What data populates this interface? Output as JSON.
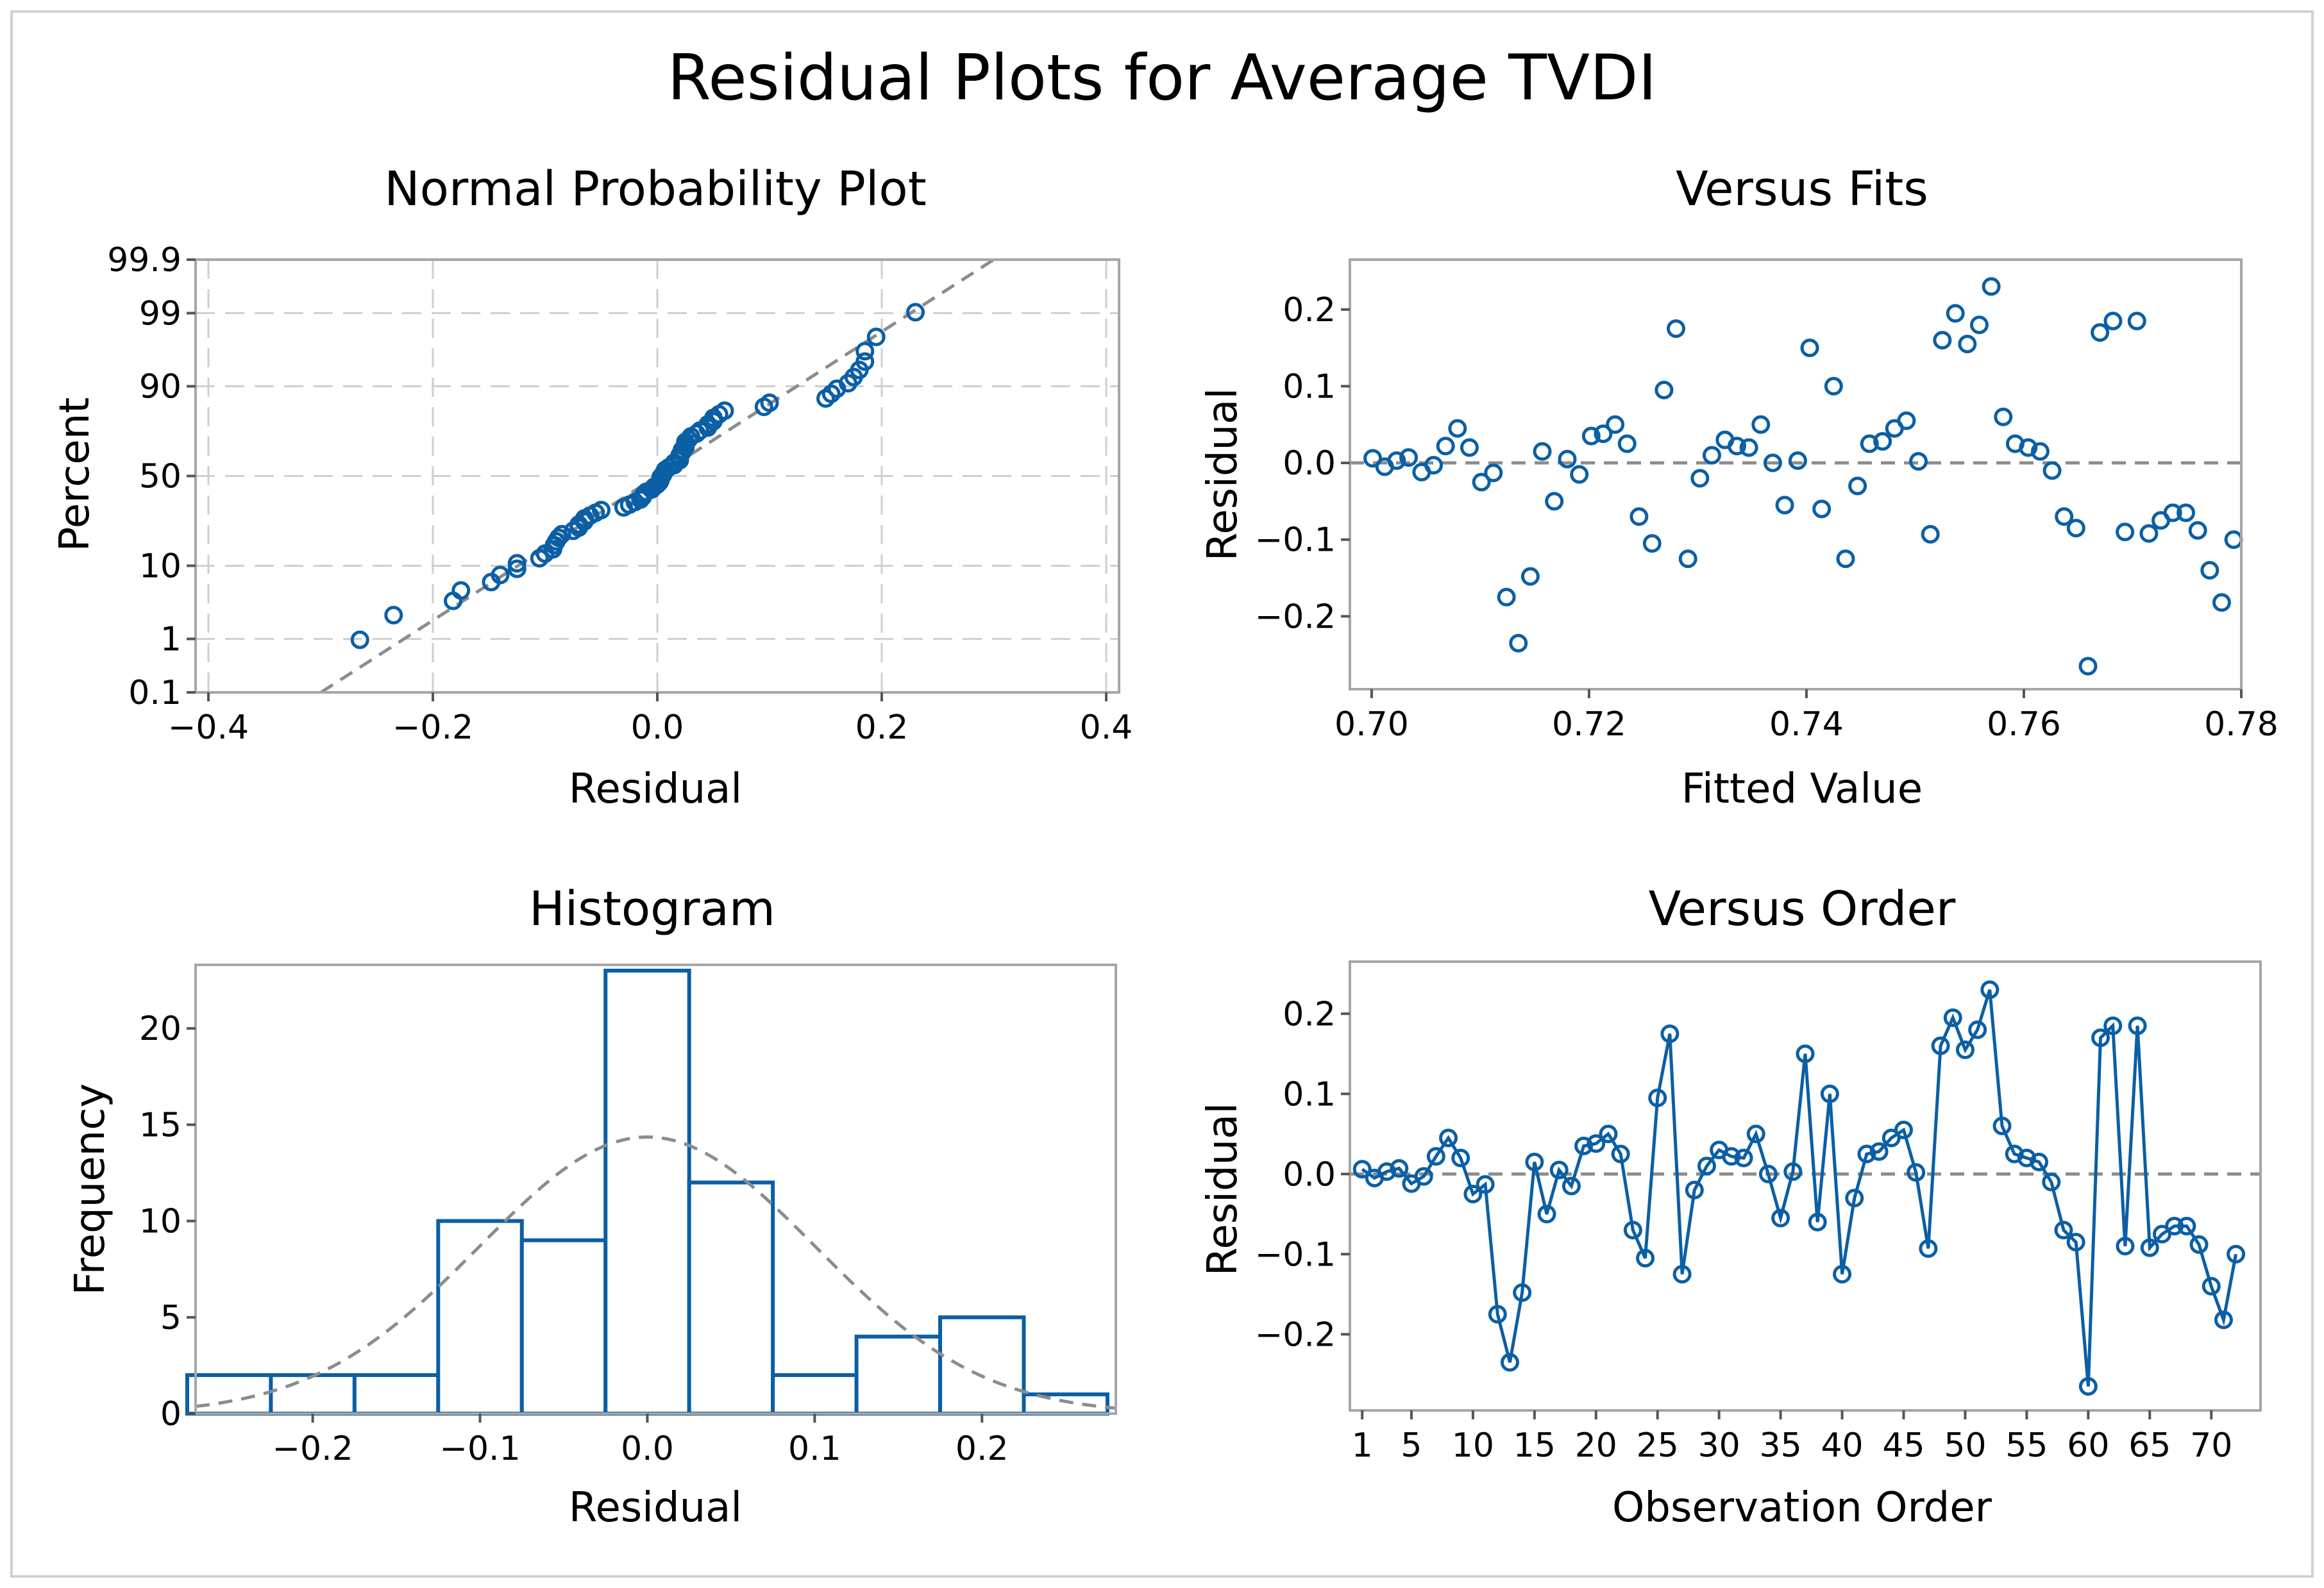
{
  "figure": {
    "title": "Residual Plots for Average TVDI",
    "accent_color": "#0b5fa5",
    "reference_color": "#8c8c8c"
  },
  "chart_data": [
    {
      "type": "scatter",
      "id": "npp",
      "title": "Normal Probability Plot",
      "xlabel": "Residual",
      "ylabel": "Percent",
      "xlim": [
        -0.4,
        0.4
      ],
      "ylim_percent": [
        0.1,
        99.9
      ],
      "x_ticks": [
        -0.4,
        -0.2,
        0.0,
        0.2,
        0.4
      ],
      "x_tick_labels": [
        "−0.4",
        "−0.2",
        "0.0",
        "0.2",
        "0.4"
      ],
      "y_ticks": [
        0.1,
        1,
        10,
        50,
        90,
        99,
        99.9
      ],
      "y_tick_labels": [
        "0.1",
        "1",
        "10",
        "50",
        "90",
        "99",
        "99.9"
      ],
      "grid": true,
      "reference_line": {
        "mean": 0.0,
        "sd": 0.097
      },
      "residuals": [
        0.006,
        -0.005,
        0.003,
        0.007,
        -0.012,
        -0.003,
        0.022,
        0.045,
        0.02,
        -0.025,
        -0.013,
        -0.175,
        -0.235,
        -0.148,
        0.015,
        -0.05,
        0.005,
        -0.015,
        0.035,
        0.038,
        0.05,
        0.025,
        -0.07,
        -0.105,
        0.095,
        0.175,
        -0.125,
        -0.02,
        0.01,
        0.03,
        0.022,
        0.02,
        0.05,
        0.0,
        -0.055,
        0.003,
        0.15,
        -0.06,
        0.1,
        -0.125,
        -0.03,
        0.025,
        0.028,
        0.045,
        0.055,
        0.002,
        -0.093,
        0.16,
        0.195,
        0.155,
        0.18,
        0.23,
        0.06,
        0.025,
        0.02,
        0.015,
        -0.01,
        -0.07,
        -0.085,
        -0.265,
        0.17,
        0.185,
        -0.09,
        0.185,
        -0.092,
        -0.075,
        -0.065,
        -0.065,
        -0.088,
        -0.14,
        -0.182,
        -0.1
      ]
    },
    {
      "type": "scatter",
      "id": "fits",
      "title": "Versus Fits",
      "xlabel": "Fitted Value",
      "ylabel": "Residual",
      "xlim": [
        0.698,
        0.78
      ],
      "ylim": [
        -0.295,
        0.265
      ],
      "x_ticks": [
        0.7,
        0.72,
        0.74,
        0.76,
        0.78
      ],
      "x_tick_labels": [
        "0.70",
        "0.72",
        "0.74",
        "0.76",
        "0.78"
      ],
      "y_ticks": [
        -0.2,
        -0.1,
        0.0,
        0.1,
        0.2
      ],
      "y_tick_labels": [
        "−0.2",
        "−0.1",
        "0.0",
        "0.1",
        "0.2"
      ],
      "grid": false,
      "reference_y": 0.0,
      "points": [
        [
          0.7001,
          0.006
        ],
        [
          0.7012,
          -0.005
        ],
        [
          0.7023,
          0.003
        ],
        [
          0.7034,
          0.007
        ],
        [
          0.7046,
          -0.012
        ],
        [
          0.7057,
          -0.003
        ],
        [
          0.7068,
          0.022
        ],
        [
          0.7079,
          0.045
        ],
        [
          0.709,
          0.02
        ],
        [
          0.7101,
          -0.025
        ],
        [
          0.7112,
          -0.013
        ],
        [
          0.7124,
          -0.175
        ],
        [
          0.7135,
          -0.235
        ],
        [
          0.7146,
          -0.148
        ],
        [
          0.7157,
          0.015
        ],
        [
          0.7168,
          -0.05
        ],
        [
          0.718,
          0.005
        ],
        [
          0.7191,
          -0.015
        ],
        [
          0.7202,
          0.035
        ],
        [
          0.7213,
          0.038
        ],
        [
          0.7224,
          0.05
        ],
        [
          0.7235,
          0.025
        ],
        [
          0.7246,
          -0.07
        ],
        [
          0.7258,
          -0.105
        ],
        [
          0.7269,
          0.095
        ],
        [
          0.728,
          0.175
        ],
        [
          0.7291,
          -0.125
        ],
        [
          0.7302,
          -0.02
        ],
        [
          0.7313,
          0.01
        ],
        [
          0.7325,
          0.03
        ],
        [
          0.7336,
          0.022
        ],
        [
          0.7347,
          0.02
        ],
        [
          0.7358,
          0.05
        ],
        [
          0.7369,
          0.0
        ],
        [
          0.738,
          -0.055
        ],
        [
          0.7392,
          0.003
        ],
        [
          0.7403,
          0.15
        ],
        [
          0.7414,
          -0.06
        ],
        [
          0.7425,
          0.1
        ],
        [
          0.7436,
          -0.125
        ],
        [
          0.7447,
          -0.03
        ],
        [
          0.7458,
          0.025
        ],
        [
          0.747,
          0.028
        ],
        [
          0.7481,
          0.045
        ],
        [
          0.7492,
          0.055
        ],
        [
          0.7503,
          0.002
        ],
        [
          0.7514,
          -0.093
        ],
        [
          0.7525,
          0.16
        ],
        [
          0.7537,
          0.195
        ],
        [
          0.7548,
          0.155
        ],
        [
          0.7559,
          0.18
        ],
        [
          0.757,
          0.23
        ],
        [
          0.7581,
          0.06
        ],
        [
          0.7592,
          0.025
        ],
        [
          0.7604,
          0.02
        ],
        [
          0.7615,
          0.015
        ],
        [
          0.7626,
          -0.01
        ],
        [
          0.7637,
          -0.07
        ],
        [
          0.7648,
          -0.085
        ],
        [
          0.7659,
          -0.265
        ],
        [
          0.767,
          0.17
        ],
        [
          0.7682,
          0.185
        ],
        [
          0.7693,
          -0.09
        ],
        [
          0.7704,
          0.185
        ],
        [
          0.7715,
          -0.092
        ],
        [
          0.7726,
          -0.075
        ],
        [
          0.7737,
          -0.065
        ],
        [
          0.7749,
          -0.065
        ],
        [
          0.776,
          -0.088
        ],
        [
          0.7771,
          -0.14
        ],
        [
          0.7782,
          -0.182
        ],
        [
          0.7793,
          -0.1
        ]
      ]
    },
    {
      "type": "bar",
      "id": "hist",
      "title": "Histogram",
      "xlabel": "Residual",
      "ylabel": "Frequency",
      "xlim": [
        -0.27,
        0.28
      ],
      "ylim": [
        0,
        23.3
      ],
      "bin_width": 0.05,
      "bin_centers": [
        -0.25,
        -0.2,
        -0.15,
        -0.1,
        -0.05,
        0.0,
        0.05,
        0.1,
        0.15,
        0.2,
        0.25
      ],
      "values": [
        2,
        2,
        2,
        10,
        9,
        23,
        12,
        2,
        4,
        5,
        1
      ],
      "x_ticks": [
        -0.2,
        -0.1,
        0.0,
        0.1,
        0.2
      ],
      "x_tick_labels": [
        "−0.2",
        "−0.1",
        "0.0",
        "0.1",
        "0.2"
      ],
      "y_ticks": [
        0,
        5,
        10,
        15,
        20
      ],
      "y_tick_labels": [
        "0",
        "5",
        "10",
        "15",
        "20"
      ],
      "normal_curve": {
        "mean": 0.0,
        "sd": 0.1,
        "n": 72
      }
    },
    {
      "type": "line",
      "id": "order",
      "title": "Versus Order",
      "xlabel": "Observation Order",
      "ylabel": "Residual",
      "xlim": [
        0,
        74
      ],
      "ylim": [
        -0.295,
        0.265
      ],
      "x_ticks": [
        1,
        5,
        10,
        15,
        20,
        25,
        30,
        35,
        40,
        45,
        50,
        55,
        60,
        65,
        70
      ],
      "x_tick_labels": [
        "1",
        "5",
        "10",
        "15",
        "20",
        "25",
        "30",
        "35",
        "40",
        "45",
        "50",
        "55",
        "60",
        "65",
        "70"
      ],
      "y_ticks": [
        -0.2,
        -0.1,
        0.0,
        0.1,
        0.2
      ],
      "y_tick_labels": [
        "−0.2",
        "−0.1",
        "0.0",
        "0.1",
        "0.2"
      ],
      "reference_y": 0.0,
      "values": [
        0.006,
        -0.005,
        0.003,
        0.007,
        -0.012,
        -0.003,
        0.022,
        0.045,
        0.02,
        -0.025,
        -0.013,
        -0.175,
        -0.235,
        -0.148,
        0.015,
        -0.05,
        0.005,
        -0.015,
        0.035,
        0.038,
        0.05,
        0.025,
        -0.07,
        -0.105,
        0.095,
        0.175,
        -0.125,
        -0.02,
        0.01,
        0.03,
        0.022,
        0.02,
        0.05,
        0.0,
        -0.055,
        0.003,
        0.15,
        -0.06,
        0.1,
        -0.125,
        -0.03,
        0.025,
        0.028,
        0.045,
        0.055,
        0.002,
        -0.093,
        0.16,
        0.195,
        0.155,
        0.18,
        0.23,
        0.06,
        0.025,
        0.02,
        0.015,
        -0.01,
        -0.07,
        -0.085,
        -0.265,
        0.17,
        0.185,
        -0.09,
        0.185,
        -0.092,
        -0.075,
        -0.065,
        -0.065,
        -0.088,
        -0.14,
        -0.182,
        -0.1
      ]
    }
  ]
}
